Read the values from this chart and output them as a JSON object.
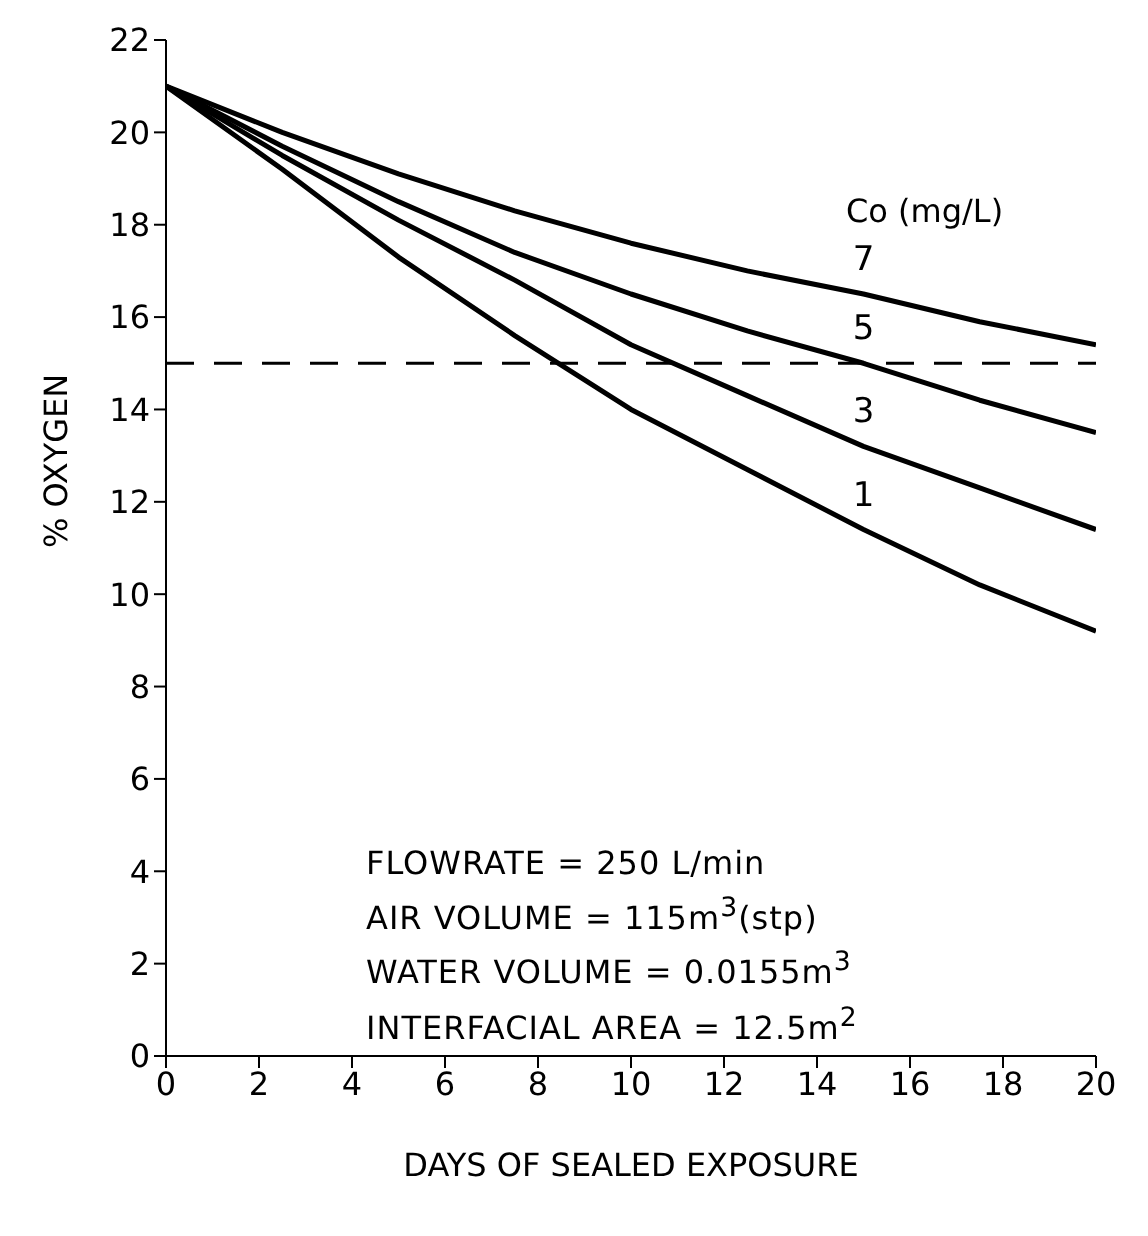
{
  "chart_data": {
    "type": "line",
    "xlabel": "DAYS OF SEALED EXPOSURE",
    "ylabel": "% OXYGEN",
    "legend_title": "Co (mg/L)",
    "x": [
      0,
      2.5,
      5,
      7.5,
      10,
      12.5,
      15,
      17.5,
      20
    ],
    "series": [
      {
        "name": "7",
        "color": "#000000",
        "values": [
          21,
          20.0,
          19.1,
          18.3,
          17.6,
          17.0,
          16.5,
          15.9,
          15.4
        ]
      },
      {
        "name": "5",
        "color": "#000000",
        "values": [
          21,
          19.7,
          18.5,
          17.4,
          16.5,
          15.7,
          15.0,
          14.2,
          13.5
        ]
      },
      {
        "name": "3",
        "color": "#000000",
        "values": [
          21,
          19.5,
          18.1,
          16.8,
          15.4,
          14.3,
          13.2,
          12.3,
          11.4
        ]
      },
      {
        "name": "1",
        "color": "#000000",
        "values": [
          21,
          19.2,
          17.3,
          15.6,
          14.0,
          12.7,
          11.4,
          10.2,
          9.2
        ]
      }
    ],
    "xlim": [
      0,
      20
    ],
    "xticks": [
      0,
      2,
      4,
      6,
      8,
      10,
      12,
      14,
      16,
      18,
      20
    ],
    "ylim": [
      0,
      22
    ],
    "yticks": [
      0,
      2,
      4,
      6,
      8,
      10,
      12,
      14,
      16,
      18,
      20,
      22
    ],
    "ref_lines": [
      {
        "axis": "y",
        "value": 15,
        "line_style": "dashed",
        "color": "#000000"
      }
    ],
    "annotations": [
      "FLOWRATE = 250 L/min",
      "AIR VOLUME = 115m$^{3}$(stp)",
      "WATER VOLUME = 0.0155m$^{3}$",
      "INTERFACIAL AREA = 12.5m$^{2}$"
    ],
    "grid": false,
    "legend": false,
    "marker": "none",
    "line_style": "solid"
  }
}
